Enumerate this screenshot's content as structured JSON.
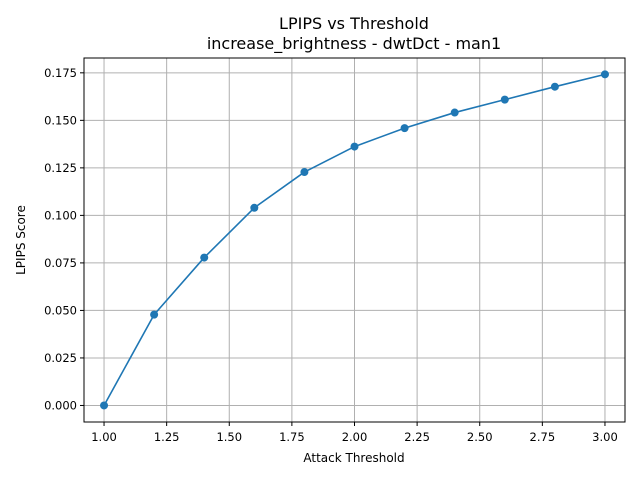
{
  "chart_data": {
    "type": "line",
    "title": "LPIPS vs Threshold",
    "subtitle": "increase_brightness - dwtDct - man1",
    "xlabel": "Attack Threshold",
    "ylabel": "LPIPS Score",
    "xlim": [
      0.92,
      3.08
    ],
    "ylim": [
      -0.0087,
      0.1828
    ],
    "grid": true,
    "x_ticks": [
      1.0,
      1.25,
      1.5,
      1.75,
      2.0,
      2.25,
      2.5,
      2.75,
      3.0
    ],
    "x_tick_labels": [
      "1.00",
      "1.25",
      "1.50",
      "1.75",
      "2.00",
      "2.25",
      "2.50",
      "2.75",
      "3.00"
    ],
    "y_ticks": [
      0.0,
      0.025,
      0.05,
      0.075,
      0.1,
      0.125,
      0.15,
      0.175
    ],
    "y_tick_labels": [
      "0.000",
      "0.025",
      "0.050",
      "0.075",
      "0.100",
      "0.125",
      "0.150",
      "0.175"
    ],
    "series": [
      {
        "color": "#1f77b4",
        "marker": "circle",
        "x": [
          1.0,
          1.2,
          1.4,
          1.6,
          1.8,
          2.0,
          2.2,
          2.4,
          2.6,
          2.8,
          3.0
        ],
        "y": [
          0.0,
          0.0478,
          0.0778,
          0.104,
          0.1228,
          0.1362,
          0.1459,
          0.1541,
          0.1609,
          0.1677,
          0.1742
        ]
      }
    ]
  }
}
